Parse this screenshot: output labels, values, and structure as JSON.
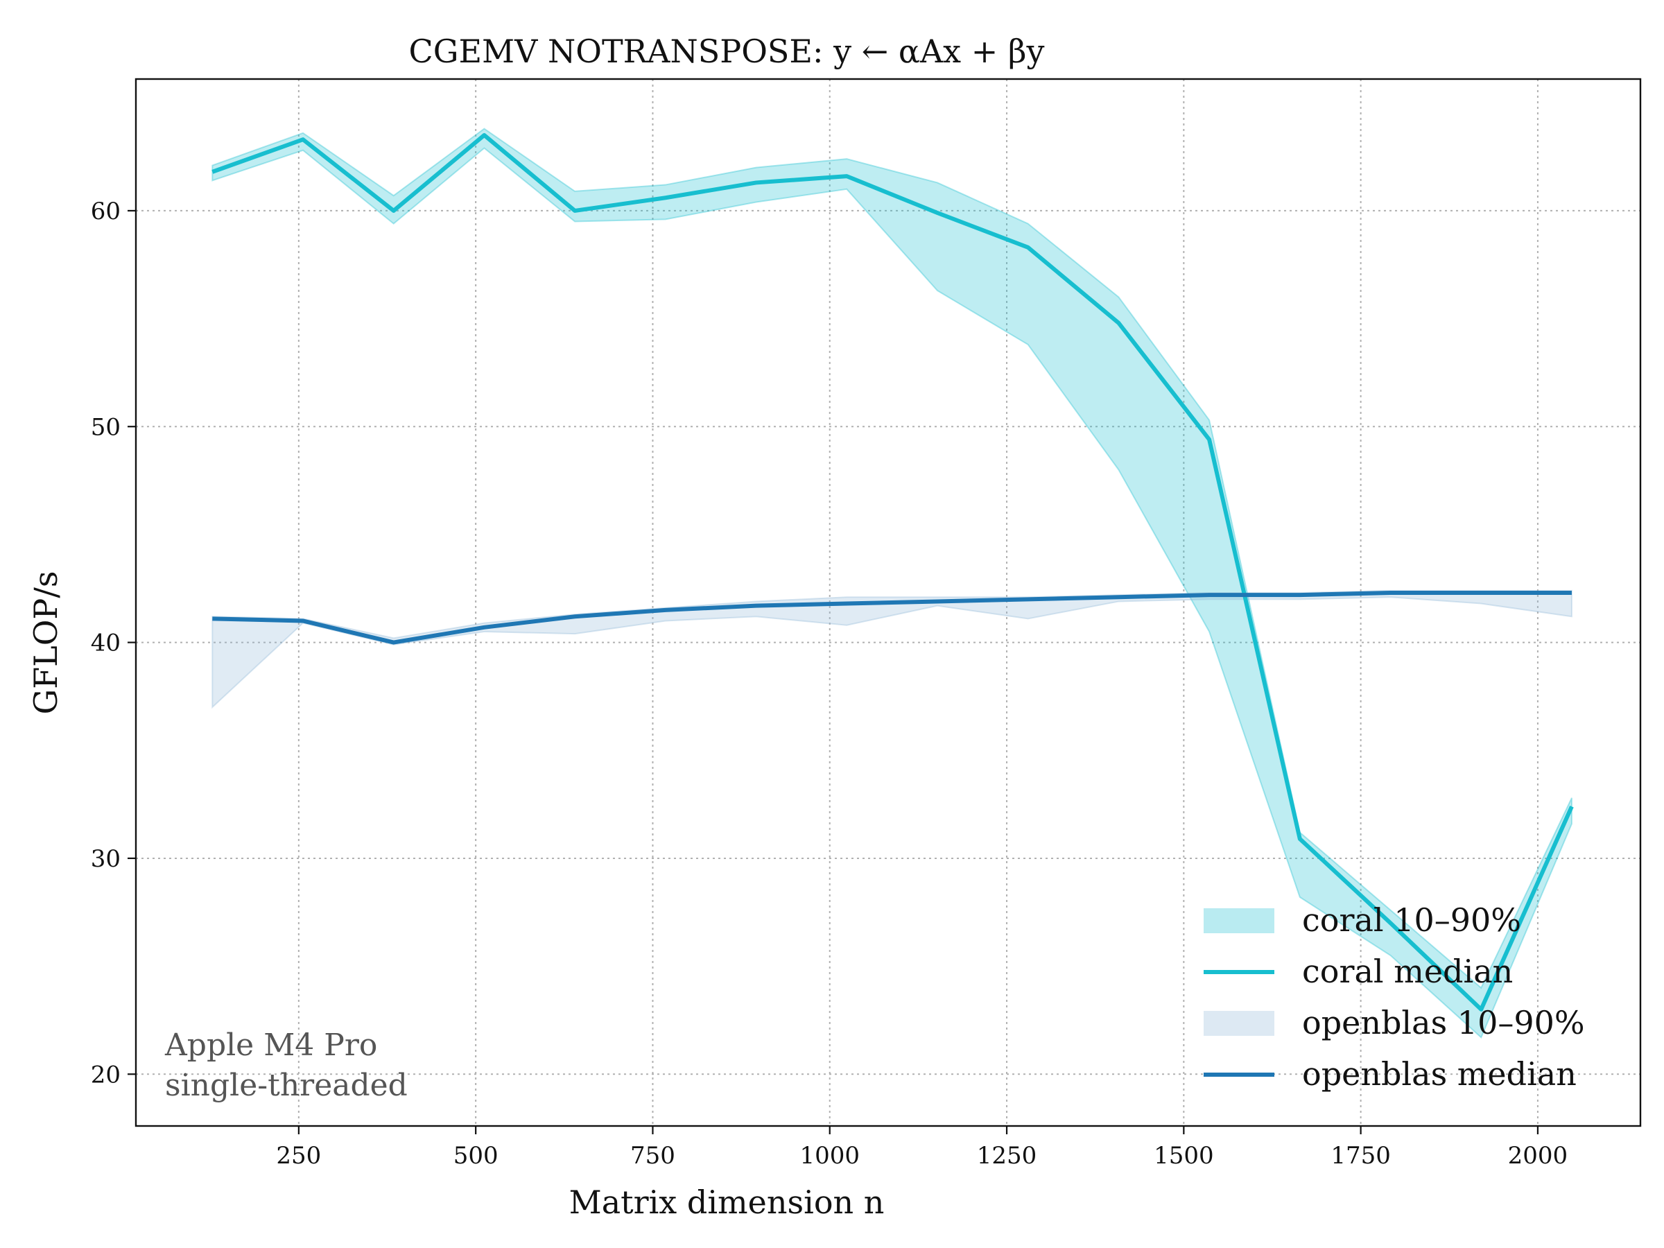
{
  "chart_data": {
    "type": "line",
    "title": "CGEMV NOTRANSPOSE: y ← αAx + βy",
    "xlabel": "Matrix dimension n",
    "ylabel": "GFLOP/s",
    "xlim": [
      20,
      2145
    ],
    "ylim": [
      17.6,
      66.1
    ],
    "xticks": [
      250,
      500,
      750,
      1000,
      1250,
      1500,
      1750,
      2000
    ],
    "yticks": [
      20,
      30,
      40,
      50,
      60
    ],
    "grid": true,
    "legend_position": "lower-right",
    "annotation": [
      "Apple M4 Pro",
      "single-threaded"
    ],
    "x": [
      128,
      256,
      384,
      512,
      640,
      768,
      896,
      1024,
      1152,
      1280,
      1408,
      1536,
      1664,
      1792,
      1920,
      2048
    ],
    "series": [
      {
        "name": "coral median",
        "kind": "line",
        "color": "#17becf",
        "values": [
          61.8,
          63.3,
          60.0,
          63.5,
          60.0,
          60.6,
          61.3,
          61.6,
          59.9,
          58.3,
          54.8,
          49.4,
          30.9,
          27.0,
          23.0,
          32.4
        ]
      },
      {
        "name": "coral 10–90%",
        "kind": "band",
        "color": "#17becf",
        "lower": [
          61.4,
          62.8,
          59.4,
          62.9,
          59.5,
          59.6,
          60.4,
          61.0,
          56.3,
          53.8,
          48.0,
          40.5,
          28.2,
          25.5,
          21.7,
          31.6
        ],
        "upper": [
          62.1,
          63.6,
          60.7,
          63.8,
          60.9,
          61.2,
          62.0,
          62.4,
          61.3,
          59.4,
          56.0,
          50.3,
          31.2,
          27.6,
          24.0,
          32.8
        ]
      },
      {
        "name": "openblas median",
        "kind": "line",
        "color": "#1f77b4",
        "values": [
          41.1,
          41.0,
          40.0,
          40.7,
          41.2,
          41.5,
          41.7,
          41.8,
          41.9,
          42.0,
          42.1,
          42.2,
          42.2,
          42.3,
          42.3,
          42.3
        ]
      },
      {
        "name": "openblas 10–90%",
        "kind": "band",
        "color": "#8fb6d6",
        "lower": [
          37.0,
          40.9,
          39.9,
          40.5,
          40.4,
          41.0,
          41.2,
          40.8,
          41.7,
          41.1,
          41.9,
          42.0,
          42.0,
          42.1,
          41.8,
          41.2
        ],
        "upper": [
          41.2,
          41.1,
          40.2,
          40.9,
          41.3,
          41.6,
          41.9,
          42.1,
          42.1,
          42.1,
          42.2,
          42.3,
          42.3,
          42.4,
          42.4,
          42.4
        ]
      }
    ]
  }
}
